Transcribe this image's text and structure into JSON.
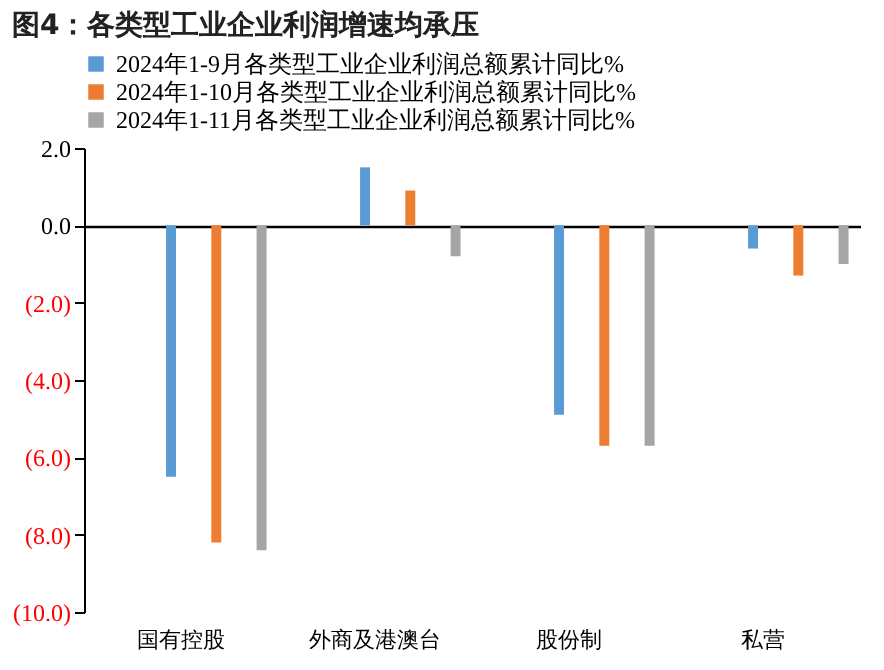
{
  "chart_data": {
    "type": "bar",
    "title": "图4：各类型工业企业利润增速均承压",
    "categories": [
      "国有控股",
      "外商及港澳台",
      "股份制",
      "私营"
    ],
    "series": [
      {
        "name": "2024年1-9月各类型工业企业利润总额累计同比%",
        "color": "#5b9bd5",
        "values": [
          -6.5,
          1.5,
          -4.9,
          -0.6
        ]
      },
      {
        "name": "2024年1-10月各类型工业企业利润总额累计同比%",
        "color": "#ed7d31",
        "values": [
          -8.2,
          0.9,
          -5.7,
          -1.3
        ]
      },
      {
        "name": "2024年1-11月各类型工业企业利润总额累计同比%",
        "color": "#a5a5a5",
        "values": [
          -8.4,
          -0.8,
          -5.7,
          -1.0
        ]
      }
    ],
    "ylim": [
      -10,
      2
    ],
    "yticks": [
      {
        "value": -10,
        "label": "(10.0)"
      },
      {
        "value": -8,
        "label": "(8.0)"
      },
      {
        "value": -6,
        "label": "(6.0)"
      },
      {
        "value": -4,
        "label": "(4.0)"
      },
      {
        "value": -2,
        "label": "(2.0)"
      },
      {
        "value": 0,
        "label": "0.0"
      },
      {
        "value": 2,
        "label": "2.0"
      }
    ],
    "legend": "top"
  }
}
